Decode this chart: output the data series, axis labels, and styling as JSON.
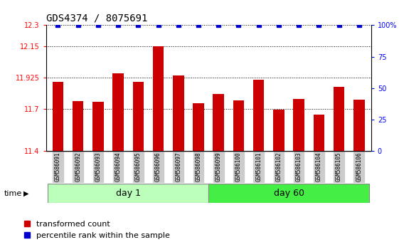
{
  "title": "GDS4374 / 8075691",
  "samples": [
    "GSM586091",
    "GSM586092",
    "GSM586093",
    "GSM586094",
    "GSM586095",
    "GSM586096",
    "GSM586097",
    "GSM586098",
    "GSM586099",
    "GSM586100",
    "GSM586101",
    "GSM586102",
    "GSM586103",
    "GSM586104",
    "GSM586105",
    "GSM586106"
  ],
  "bar_values": [
    11.895,
    11.76,
    11.755,
    11.955,
    11.895,
    12.15,
    11.94,
    11.745,
    11.81,
    11.765,
    11.91,
    11.695,
    11.775,
    11.66,
    11.86,
    11.77
  ],
  "percentile_values": [
    100,
    100,
    100,
    100,
    100,
    100,
    100,
    100,
    100,
    100,
    100,
    100,
    100,
    100,
    100,
    100
  ],
  "day1_samples": 8,
  "day60_samples": 8,
  "bar_color": "#cc0000",
  "percentile_color": "#0000cc",
  "ylim_left": [
    11.4,
    12.3
  ],
  "yticks_left": [
    11.4,
    11.7,
    11.925,
    12.15,
    12.3
  ],
  "ytick_labels_left": [
    "11.4",
    "11.7",
    "11.925",
    "12.15",
    "12.3"
  ],
  "ylim_right": [
    0,
    100
  ],
  "yticks_right": [
    0,
    25,
    50,
    75,
    100
  ],
  "ytick_labels_right": [
    "0",
    "25",
    "50",
    "75",
    "100%"
  ],
  "day1_label": "day 1",
  "day60_label": "day 60",
  "day1_color": "#bbffbb",
  "day60_color": "#44ee44",
  "time_label": "time",
  "legend_bar_label": "transformed count",
  "legend_pct_label": "percentile rank within the sample",
  "title_fontsize": 10,
  "tick_label_bg": "#cccccc",
  "bar_width": 0.55
}
